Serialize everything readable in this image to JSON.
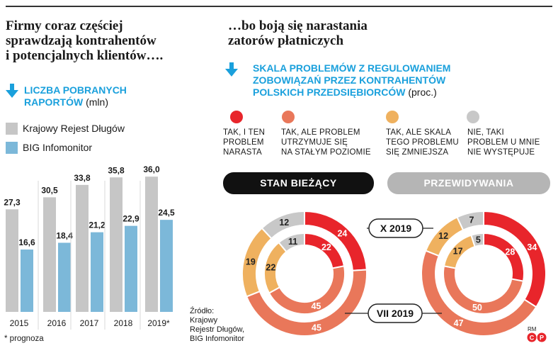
{
  "left_title": [
    "Firmy coraz częściej",
    "sprawdzają kontrahentów",
    "i potencjalnych klientów…."
  ],
  "right_title": [
    "…bo boją się narastania",
    "zatorów płatniczych"
  ],
  "left_subtitle": {
    "line1": "LICZBA POBRANYCH",
    "line2": "RAPORTÓW",
    "unit": "(mln)"
  },
  "right_subtitle": {
    "line1": "SKALA PROBLEMÓW Z REGULOWANIEM",
    "line2": "ZOBOWIĄZAŃ PRZEZ KONTRAHENTÓW",
    "line3": "POLSKICH PRZEDSIĘBIORCÓW",
    "unit": "(proc.)"
  },
  "legend": [
    {
      "label": "Krajowy Rejest Długów",
      "color": "#c6c6c6"
    },
    {
      "label": "BIG Infomonitor",
      "color": "#7cb8d9"
    }
  ],
  "categories": [
    {
      "label": "TAK, I TEN PROBLEM NARASTA",
      "lines": [
        "TAK, I TEN",
        "PROBLEM",
        "NARASTA"
      ],
      "color": "#e8252b"
    },
    {
      "label": "TAK, ALE PROBLEM UTRZYMUJE SIĘ NA STAŁYM POZIOMIE",
      "lines": [
        "TAK, ALE PROBLEM",
        "UTRZYMUJE SIĘ",
        "NA STAŁYM POZIOMIE"
      ],
      "color": "#e9775a"
    },
    {
      "label": "TAK, ALE SKALA TEGO PROBLEMU SIĘ ZMNIEJSZA",
      "lines": [
        "TAK, ALE SKALA",
        "TEGO PROBLEMU",
        "SIĘ ZMNIEJSZA"
      ],
      "color": "#efb15f"
    },
    {
      "label": "NIE, TAKI PROBLEM U MNIE NIE WYSTĘPUJE",
      "lines": [
        "NIE, TAKI",
        "PROBLEM U MNIE",
        "NIE WYSTĘPUJE"
      ],
      "color": "#c8c8c8"
    }
  ],
  "tabs": {
    "current": "STAN BIEŻĄCY",
    "forecast": "PRZEWIDYWANIA",
    "current_color": "#111111",
    "forecast_color": "#b5b5b5"
  },
  "period_labels": {
    "outer": "X 2019",
    "inner": "VII 2019"
  },
  "footnote": "* prognoza",
  "source": [
    "Źródło:",
    "Krajowy",
    "Rejestr Długów,",
    "BIG Infomonitor"
  ],
  "credit": "RM",
  "chart_data": [
    {
      "type": "bar",
      "categories": [
        "2015",
        "2016",
        "2017",
        "2018",
        "2019*"
      ],
      "series": [
        {
          "name": "Krajowy Rejest Długów",
          "values": [
            27.3,
            30.5,
            33.8,
            35.8,
            36.0
          ],
          "labels": [
            "27,3",
            "30,5",
            "33,8",
            "35,8",
            "36,0"
          ],
          "color": "#c6c6c6"
        },
        {
          "name": "BIG Infomonitor",
          "values": [
            16.6,
            18.4,
            21.2,
            22.9,
            24.5
          ],
          "labels": [
            "16,6",
            "18,4",
            "21,2",
            "22,9",
            "24,5"
          ],
          "color": "#7cb8d9"
        }
      ],
      "ylim": [
        0,
        40
      ]
    },
    {
      "type": "pie",
      "panel": "STAN BIEŻĄCY",
      "rings": [
        {
          "name": "X 2019",
          "values": [
            24,
            45,
            19,
            12
          ]
        },
        {
          "name": "VII 2019",
          "values": [
            22,
            45,
            22,
            11
          ]
        }
      ]
    },
    {
      "type": "pie",
      "panel": "PRZEWIDYWANIA",
      "rings": [
        {
          "name": "X 2019",
          "values": [
            34,
            47,
            12,
            7
          ]
        },
        {
          "name": "VII 2019",
          "values": [
            28,
            50,
            17,
            5
          ]
        }
      ]
    }
  ]
}
